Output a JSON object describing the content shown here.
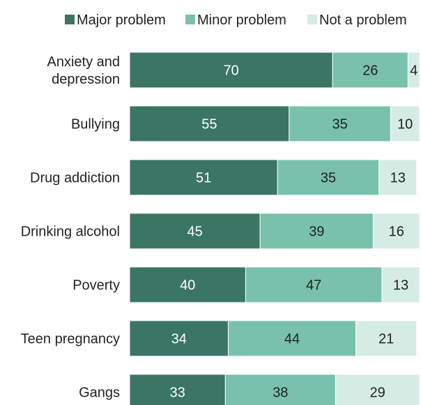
{
  "chart_data": {
    "type": "bar",
    "orientation": "horizontal",
    "stacked": true,
    "categories": [
      [
        "Anxiety and",
        "depression"
      ],
      [
        "Bullying"
      ],
      [
        "Drug addiction"
      ],
      [
        "Drinking alcohol"
      ],
      [
        "Poverty"
      ],
      [
        "Teen pregnancy"
      ],
      [
        "Gangs"
      ]
    ],
    "series": [
      {
        "name": "Major problem",
        "color": "#3a7565",
        "label_color": "#ffffff",
        "values": [
          70,
          55,
          51,
          45,
          40,
          34,
          33
        ]
      },
      {
        "name": "Minor problem",
        "color": "#79c0ad",
        "label_color": "#222222",
        "values": [
          26,
          35,
          35,
          39,
          47,
          44,
          38
        ]
      },
      {
        "name": "Not a problem",
        "color": "#d5ece5",
        "label_color": "#222222",
        "values": [
          4,
          10,
          13,
          16,
          13,
          21,
          29
        ]
      }
    ],
    "xlim": [
      0,
      100
    ],
    "grid": false,
    "legend_position": "top"
  }
}
